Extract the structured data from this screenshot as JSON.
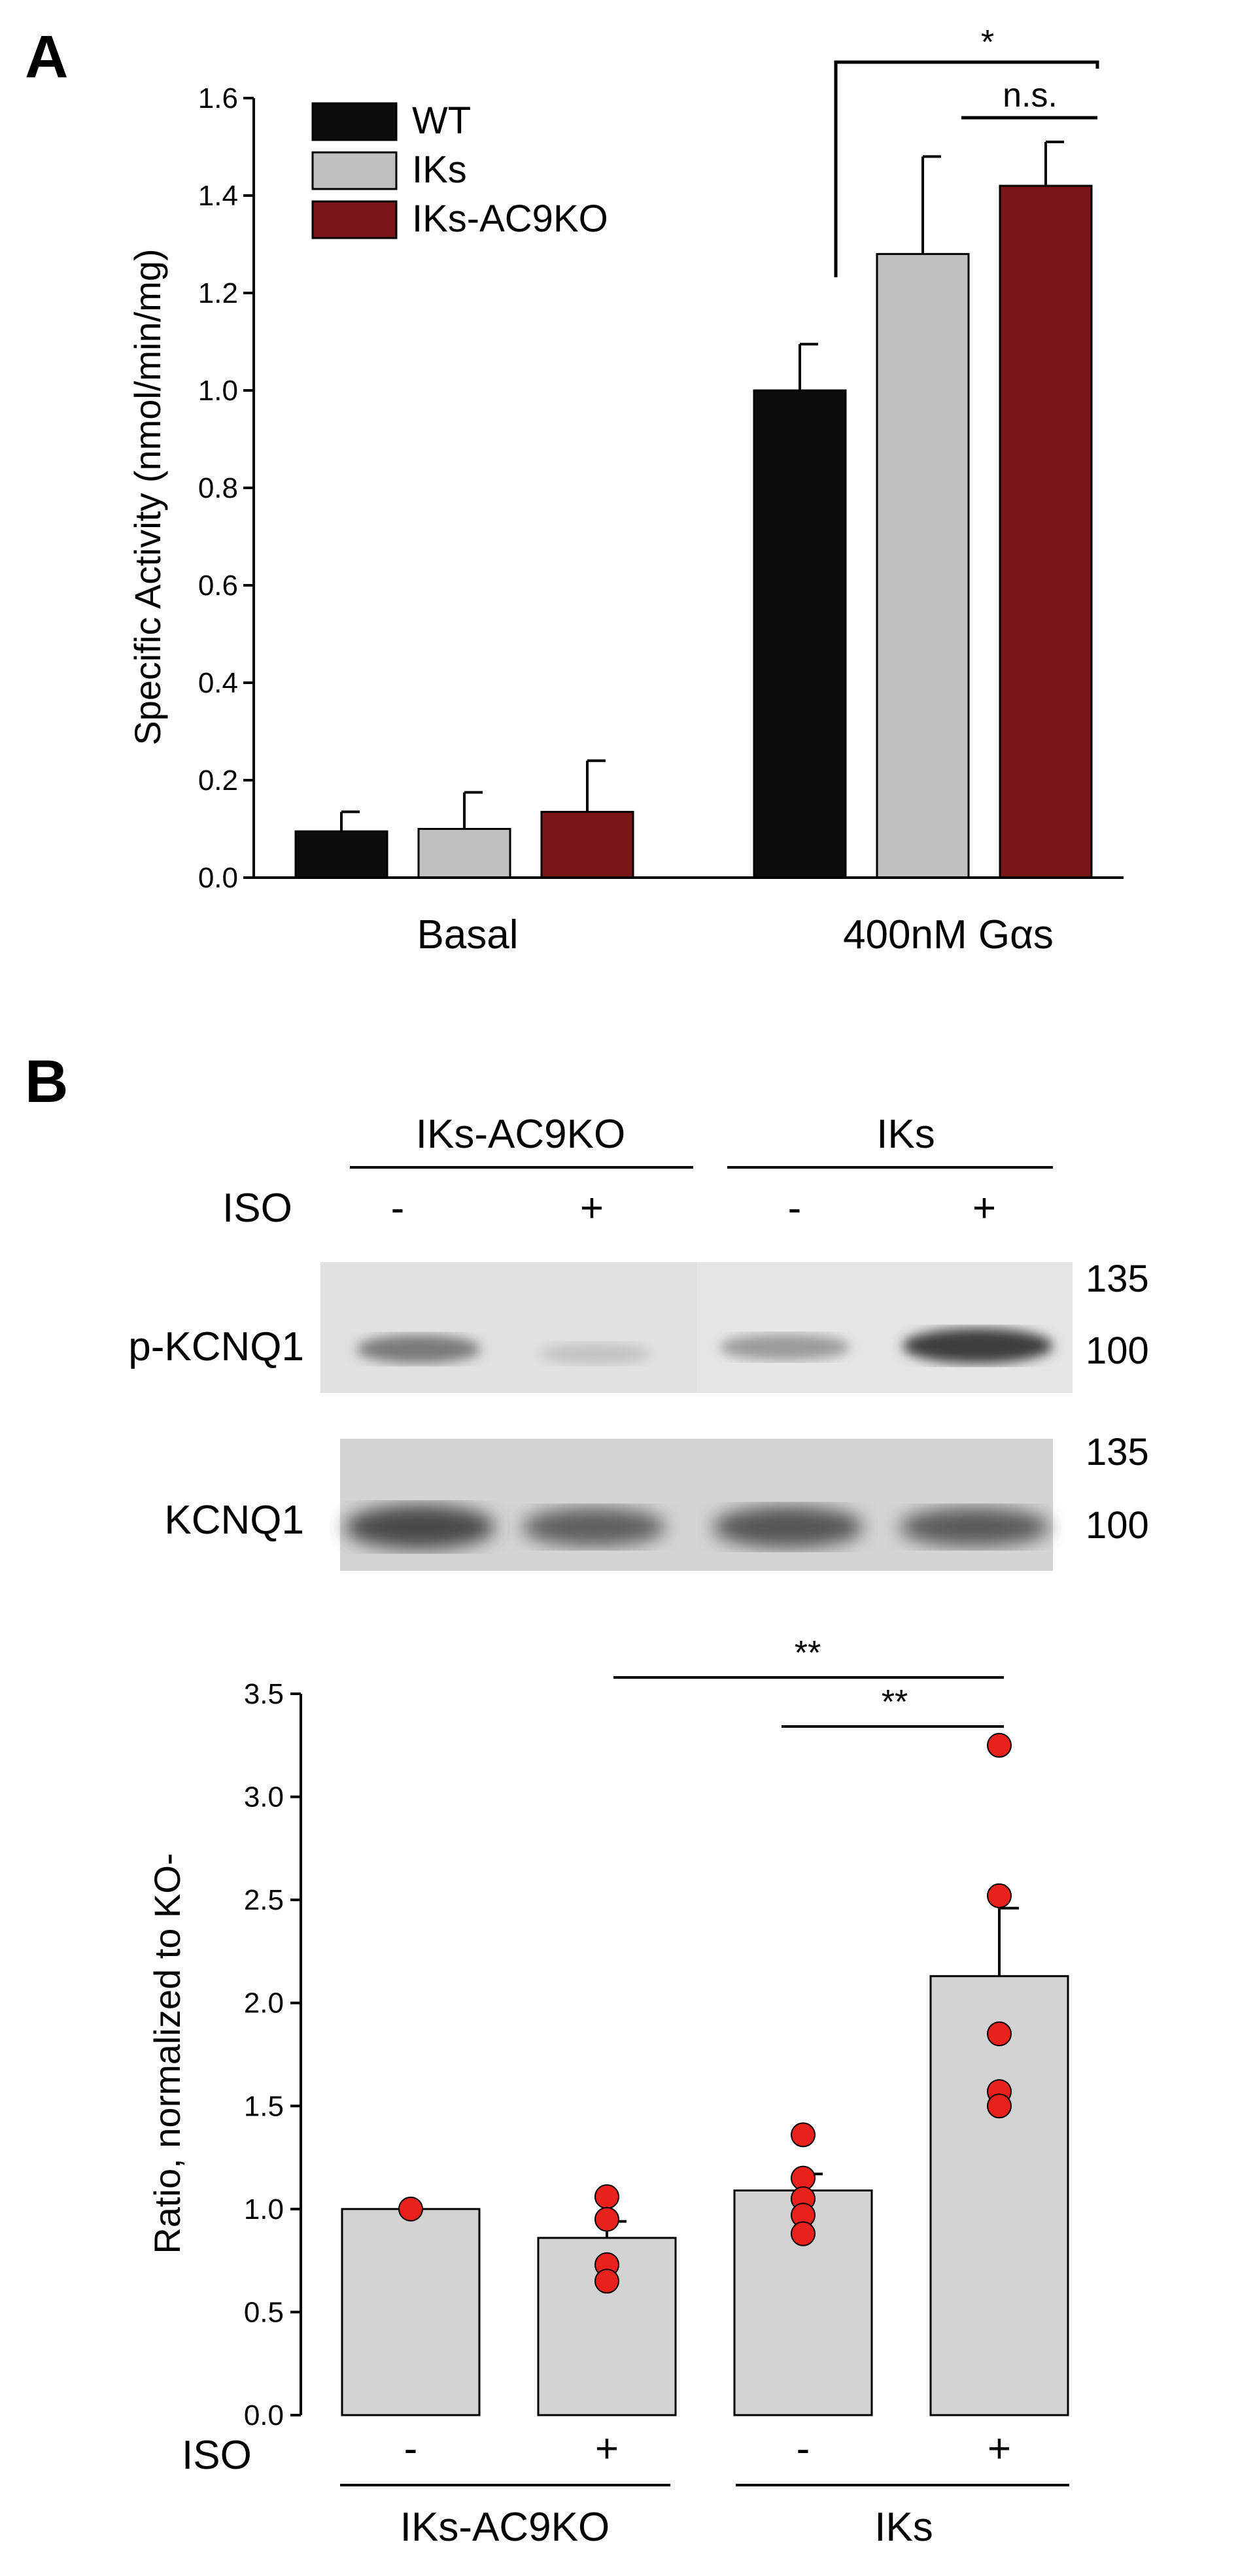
{
  "panel_a": {
    "letter": "A",
    "sig_star": "*",
    "sig_ns": "n.s."
  },
  "panel_b": {
    "letter": "B",
    "iso_label": "ISO",
    "groups": [
      "IKs-AC9KO",
      "IKs"
    ],
    "iso_signs": [
      "-",
      "+",
      "-",
      "+"
    ],
    "blot_rows": [
      "p-KCNQ1",
      "KCNQ1"
    ],
    "mw_markers": [
      "135",
      "100"
    ],
    "sig": [
      "**",
      "**"
    ]
  },
  "colors": {
    "wt": "#0d0d10",
    "iks": "#c0c0c0",
    "iks_ac9ko": "#7a1518",
    "bar_b": "#d3d3d3",
    "point": "#e8211d"
  },
  "chart_data": [
    {
      "type": "bar",
      "ylabel": "Specific Activity (nmol/min/mg)",
      "ylim": [
        0,
        1.6
      ],
      "yticks": [
        "0.0",
        "0.2",
        "0.4",
        "0.6",
        "0.8",
        "1.0",
        "1.2",
        "1.4",
        "1.6"
      ],
      "categories": [
        "Basal",
        "400nM Gαs"
      ],
      "legend_position": "top-left",
      "series": [
        {
          "name": "WT",
          "values": [
            0.095,
            1.0
          ],
          "errors": [
            0.04,
            0.095
          ]
        },
        {
          "name": "IKs",
          "values": [
            0.1,
            1.28
          ],
          "errors": [
            0.075,
            0.2
          ]
        },
        {
          "name": "IKs-AC9KO",
          "values": [
            0.135,
            1.42
          ],
          "errors": [
            0.105,
            0.09
          ]
        }
      ]
    },
    {
      "type": "bar",
      "ylabel": "Ratio, normalized to KO-",
      "ylim": [
        0,
        3.5
      ],
      "yticks": [
        "0.0",
        "0.5",
        "1.0",
        "1.5",
        "2.0",
        "2.5",
        "3.0",
        "3.5"
      ],
      "categories": [
        "-",
        "+",
        "-",
        "+"
      ],
      "groups": [
        "IKs-AC9KO",
        "IKs"
      ],
      "values": [
        1.0,
        0.86,
        1.09,
        2.13
      ],
      "errors": [
        0.0,
        0.08,
        0.08,
        0.33
      ],
      "points": [
        [
          1.0
        ],
        [
          1.06,
          0.95,
          0.73,
          0.65
        ],
        [
          1.36,
          1.15,
          1.05,
          0.97,
          0.88
        ],
        [
          3.25,
          2.52,
          1.85,
          1.57,
          1.5
        ]
      ]
    }
  ]
}
